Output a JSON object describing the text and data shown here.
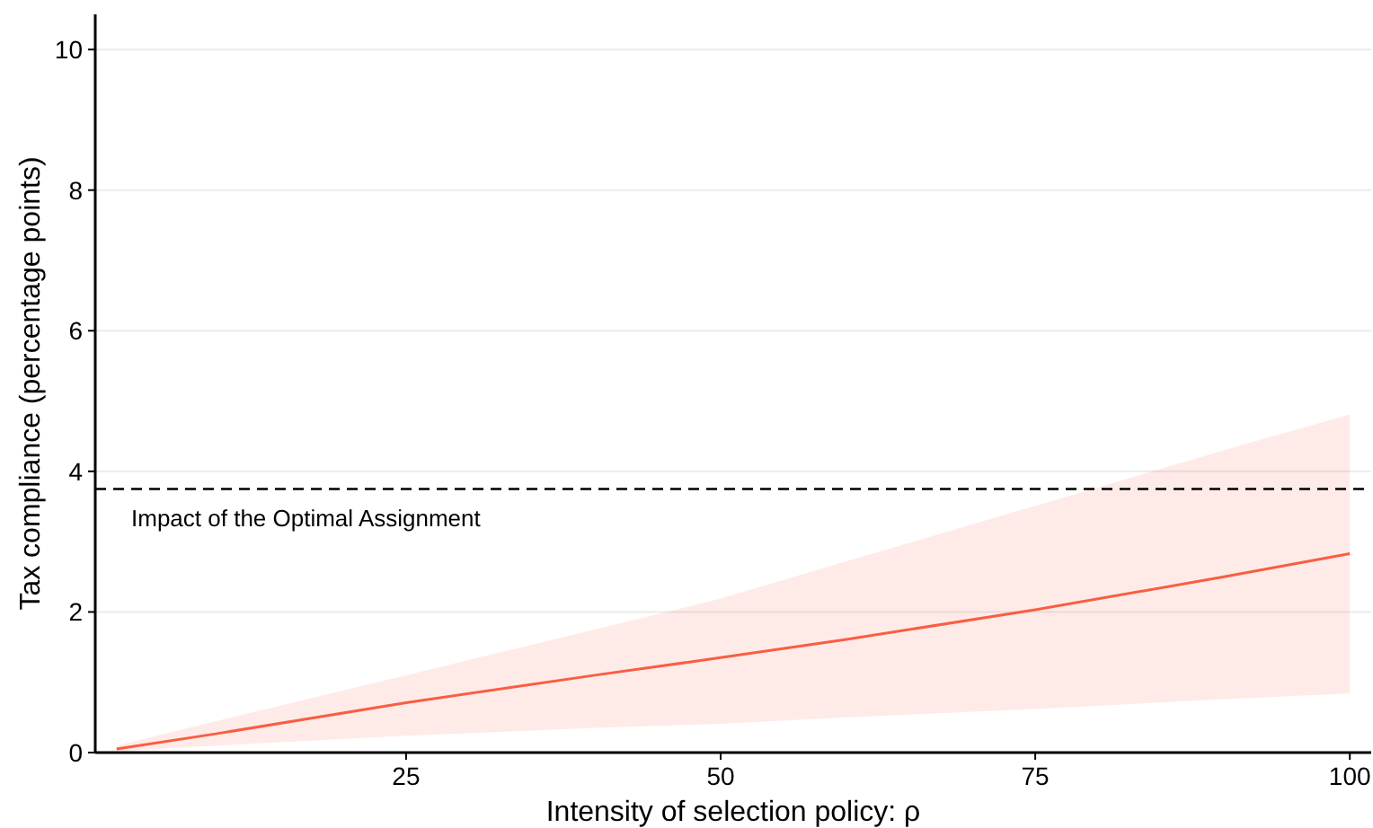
{
  "chart_data": {
    "type": "line",
    "xlabel": "Intensity of selection policy: ρ",
    "ylabel": "Tax compliance (percentage points)",
    "x": [
      2,
      10,
      25,
      40,
      50,
      60,
      75,
      90,
      100
    ],
    "series": [
      {
        "color": "#fa5d42",
        "values": [
          0.05,
          0.27,
          0.71,
          1.1,
          1.35,
          1.61,
          2.03,
          2.5,
          2.83
        ],
        "lower": [
          0.02,
          0.1,
          0.24,
          0.35,
          0.41,
          0.5,
          0.62,
          0.76,
          0.84
        ],
        "upper": [
          0.1,
          0.45,
          1.1,
          1.75,
          2.19,
          2.72,
          3.51,
          4.3,
          4.81
        ]
      }
    ],
    "xlim": [
      0.3,
      101.7
    ],
    "ylim": [
      0,
      10.5
    ],
    "xticks": [
      25,
      50,
      75,
      100
    ],
    "yticks": [
      0,
      2,
      4,
      6,
      8,
      10
    ],
    "grid": "y",
    "marker": "none",
    "line_style": "solid",
    "ref_lines": [
      {
        "axis": "y",
        "value": 3.75,
        "label": "Impact of the Optimal Assignment",
        "color": "#000000",
        "line_style": "dashed"
      }
    ]
  }
}
